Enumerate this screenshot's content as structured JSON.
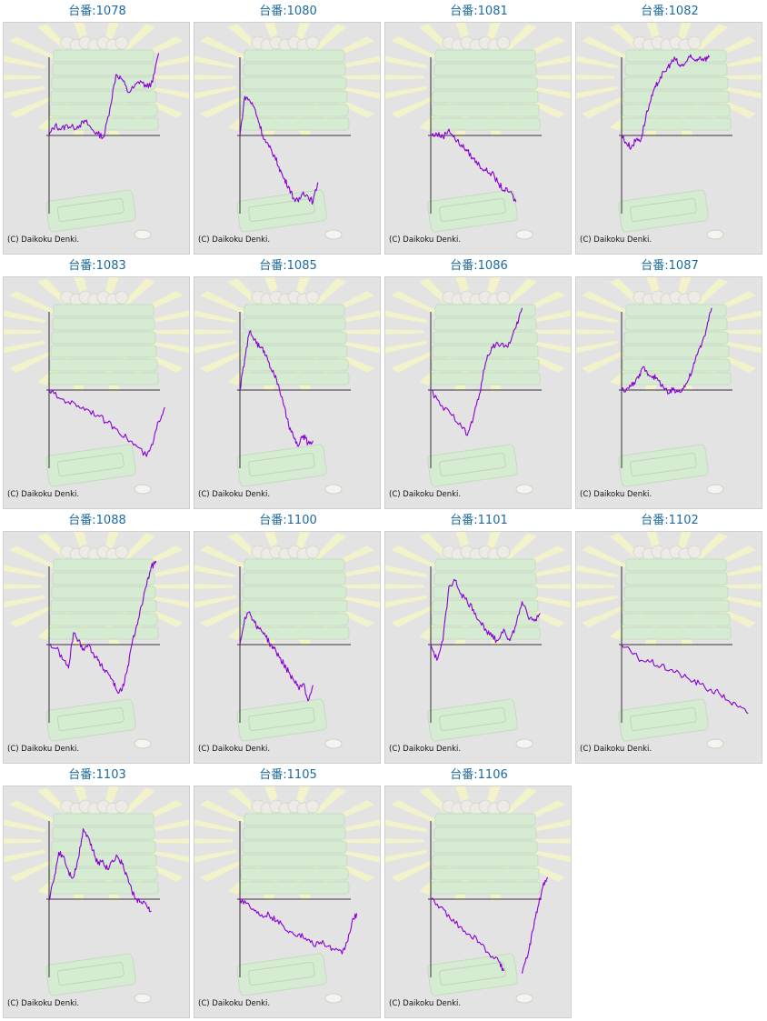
{
  "ui": {
    "credit": "(C) Daikoku Denki.",
    "colors": {
      "title": "#1c6aa0",
      "panel_bg": "#e3e3e3",
      "frame_border": "#cfcfcf",
      "axis": "#333333",
      "line": "#8a00d4",
      "ray": "#f3f3c8",
      "machine": "#d6ecd2"
    }
  },
  "chart_data": [
    {
      "type": "line",
      "title": "台番:1078",
      "points": [
        [
          0,
          0
        ],
        [
          5,
          0.13
        ],
        [
          10,
          0.08
        ],
        [
          15,
          0.13
        ],
        [
          20,
          0.1
        ],
        [
          25,
          0.13
        ],
        [
          30,
          0.18
        ],
        [
          35,
          0.08
        ],
        [
          40,
          0.02
        ],
        [
          45,
          -0.02
        ],
        [
          50,
          0.35
        ],
        [
          55,
          0.78
        ],
        [
          60,
          0.72
        ],
        [
          65,
          0.55
        ],
        [
          70,
          0.62
        ],
        [
          75,
          0.7
        ],
        [
          80,
          0.62
        ],
        [
          85,
          0.68
        ],
        [
          90,
          1.05
        ]
      ]
    },
    {
      "type": "line",
      "title": "台番:1080",
      "points": [
        [
          0,
          0
        ],
        [
          4,
          0.5
        ],
        [
          8,
          0.45
        ],
        [
          12,
          0.35
        ],
        [
          16,
          0.15
        ],
        [
          20,
          -0.05
        ],
        [
          24,
          -0.15
        ],
        [
          28,
          -0.25
        ],
        [
          32,
          -0.4
        ],
        [
          36,
          -0.55
        ],
        [
          40,
          -0.65
        ],
        [
          44,
          -0.8
        ],
        [
          48,
          -0.85
        ],
        [
          52,
          -0.72
        ],
        [
          56,
          -0.78
        ],
        [
          60,
          -0.85
        ],
        [
          64,
          -0.6
        ]
      ]
    },
    {
      "type": "line",
      "title": "台番:1081",
      "points": [
        [
          0,
          0
        ],
        [
          5,
          0.02
        ],
        [
          10,
          -0.02
        ],
        [
          15,
          0.08
        ],
        [
          20,
          -0.05
        ],
        [
          25,
          -0.12
        ],
        [
          30,
          -0.2
        ],
        [
          35,
          -0.3
        ],
        [
          40,
          -0.38
        ],
        [
          45,
          -0.45
        ],
        [
          50,
          -0.48
        ],
        [
          55,
          -0.6
        ],
        [
          60,
          -0.7
        ],
        [
          65,
          -0.72
        ],
        [
          70,
          -0.85
        ]
      ]
    },
    {
      "type": "line",
      "title": "台番:1082",
      "points": [
        [
          0,
          0
        ],
        [
          4,
          -0.1
        ],
        [
          8,
          -0.15
        ],
        [
          12,
          -0.05
        ],
        [
          16,
          -0.05
        ],
        [
          20,
          0.25
        ],
        [
          24,
          0.45
        ],
        [
          28,
          0.62
        ],
        [
          32,
          0.75
        ],
        [
          36,
          0.82
        ],
        [
          40,
          0.92
        ],
        [
          44,
          0.98
        ],
        [
          48,
          0.88
        ],
        [
          52,
          0.92
        ],
        [
          56,
          1.0
        ],
        [
          60,
          0.96
        ],
        [
          64,
          1.0
        ],
        [
          68,
          0.98
        ],
        [
          72,
          1.0
        ]
      ]
    },
    {
      "type": "line",
      "title": "台番:1083",
      "points": [
        [
          0,
          0
        ],
        [
          8,
          -0.1
        ],
        [
          16,
          -0.15
        ],
        [
          24,
          -0.2
        ],
        [
          32,
          -0.25
        ],
        [
          40,
          -0.32
        ],
        [
          48,
          -0.42
        ],
        [
          56,
          -0.5
        ],
        [
          64,
          -0.62
        ],
        [
          72,
          -0.72
        ],
        [
          80,
          -0.85
        ],
        [
          85,
          -0.7
        ],
        [
          90,
          -0.4
        ],
        [
          95,
          -0.22
        ]
      ]
    },
    {
      "type": "line",
      "title": "台番:1085",
      "points": [
        [
          0,
          0
        ],
        [
          4,
          0.4
        ],
        [
          8,
          0.75
        ],
        [
          12,
          0.65
        ],
        [
          16,
          0.55
        ],
        [
          20,
          0.5
        ],
        [
          24,
          0.35
        ],
        [
          28,
          0.2
        ],
        [
          32,
          0.05
        ],
        [
          36,
          -0.2
        ],
        [
          40,
          -0.45
        ],
        [
          44,
          -0.6
        ],
        [
          48,
          -0.72
        ],
        [
          52,
          -0.58
        ],
        [
          56,
          -0.68
        ],
        [
          60,
          -0.65
        ]
      ]
    },
    {
      "type": "line",
      "title": "台番:1086",
      "points": [
        [
          0,
          0
        ],
        [
          8,
          -0.2
        ],
        [
          16,
          -0.3
        ],
        [
          24,
          -0.42
        ],
        [
          30,
          -0.58
        ],
        [
          35,
          -0.35
        ],
        [
          40,
          -0.05
        ],
        [
          45,
          0.35
        ],
        [
          50,
          0.55
        ],
        [
          55,
          0.6
        ],
        [
          60,
          0.55
        ],
        [
          65,
          0.6
        ],
        [
          70,
          0.8
        ],
        [
          75,
          1.05
        ]
      ]
    },
    {
      "type": "line",
      "title": "台番:1087",
      "points": [
        [
          0,
          0
        ],
        [
          6,
          0.02
        ],
        [
          10,
          0.1
        ],
        [
          14,
          0.15
        ],
        [
          18,
          0.3
        ],
        [
          22,
          0.2
        ],
        [
          26,
          0.18
        ],
        [
          30,
          0.12
        ],
        [
          34,
          0.05
        ],
        [
          38,
          -0.05
        ],
        [
          42,
          0.0
        ],
        [
          46,
          -0.02
        ],
        [
          50,
          0.02
        ],
        [
          54,
          0.1
        ],
        [
          58,
          0.25
        ],
        [
          62,
          0.45
        ],
        [
          66,
          0.6
        ],
        [
          70,
          0.8
        ],
        [
          74,
          1.05
        ]
      ]
    },
    {
      "type": "line",
      "title": "台番:1088",
      "points": [
        [
          0,
          0
        ],
        [
          6,
          -0.05
        ],
        [
          12,
          -0.2
        ],
        [
          16,
          -0.3
        ],
        [
          20,
          0.15
        ],
        [
          24,
          0.05
        ],
        [
          28,
          -0.05
        ],
        [
          32,
          0.0
        ],
        [
          36,
          -0.1
        ],
        [
          40,
          -0.2
        ],
        [
          44,
          -0.3
        ],
        [
          48,
          -0.35
        ],
        [
          52,
          -0.45
        ],
        [
          56,
          -0.6
        ],
        [
          60,
          -0.58
        ],
        [
          64,
          -0.35
        ],
        [
          68,
          0.0
        ],
        [
          72,
          0.25
        ],
        [
          76,
          0.5
        ],
        [
          80,
          0.75
        ],
        [
          84,
          1.0
        ],
        [
          88,
          1.05
        ]
      ]
    },
    {
      "type": "line",
      "title": "台番:1100",
      "points": [
        [
          0,
          0
        ],
        [
          4,
          0.35
        ],
        [
          8,
          0.42
        ],
        [
          12,
          0.28
        ],
        [
          16,
          0.2
        ],
        [
          20,
          0.15
        ],
        [
          24,
          0.02
        ],
        [
          28,
          -0.05
        ],
        [
          32,
          -0.15
        ],
        [
          36,
          -0.25
        ],
        [
          40,
          -0.35
        ],
        [
          44,
          -0.45
        ],
        [
          48,
          -0.55
        ],
        [
          52,
          -0.5
        ],
        [
          56,
          -0.72
        ],
        [
          60,
          -0.52
        ]
      ]
    },
    {
      "type": "line",
      "title": "台番:1101",
      "points": [
        [
          0,
          0
        ],
        [
          5,
          -0.2
        ],
        [
          10,
          0.05
        ],
        [
          15,
          0.75
        ],
        [
          20,
          0.82
        ],
        [
          25,
          0.65
        ],
        [
          30,
          0.55
        ],
        [
          35,
          0.45
        ],
        [
          40,
          0.3
        ],
        [
          45,
          0.2
        ],
        [
          50,
          0.1
        ],
        [
          55,
          0.05
        ],
        [
          60,
          0.2
        ],
        [
          65,
          0.05
        ],
        [
          70,
          0.25
        ],
        [
          75,
          0.55
        ],
        [
          80,
          0.35
        ],
        [
          85,
          0.3
        ],
        [
          90,
          0.4
        ]
      ]
    },
    {
      "type": "line",
      "title": "台番:1102",
      "points": [
        [
          0,
          0
        ],
        [
          8,
          -0.1
        ],
        [
          16,
          -0.2
        ],
        [
          24,
          -0.22
        ],
        [
          32,
          -0.28
        ],
        [
          40,
          -0.32
        ],
        [
          48,
          -0.38
        ],
        [
          56,
          -0.45
        ],
        [
          64,
          -0.5
        ],
        [
          72,
          -0.58
        ],
        [
          80,
          -0.62
        ],
        [
          88,
          -0.72
        ],
        [
          96,
          -0.8
        ],
        [
          104,
          -0.88
        ]
      ]
    },
    {
      "type": "line",
      "title": "台番:1103",
      "points": [
        [
          0,
          0
        ],
        [
          4,
          0.25
        ],
        [
          8,
          0.6
        ],
        [
          12,
          0.55
        ],
        [
          16,
          0.35
        ],
        [
          20,
          0.28
        ],
        [
          24,
          0.52
        ],
        [
          28,
          0.9
        ],
        [
          32,
          0.8
        ],
        [
          36,
          0.62
        ],
        [
          40,
          0.45
        ],
        [
          44,
          0.5
        ],
        [
          48,
          0.38
        ],
        [
          52,
          0.5
        ],
        [
          56,
          0.55
        ],
        [
          60,
          0.45
        ],
        [
          64,
          0.3
        ],
        [
          68,
          0.1
        ],
        [
          72,
          0.0
        ],
        [
          76,
          -0.05
        ],
        [
          80,
          -0.08
        ],
        [
          84,
          -0.15
        ]
      ]
    },
    {
      "type": "line",
      "title": "台番:1105",
      "points": [
        [
          0,
          0
        ],
        [
          6,
          -0.05
        ],
        [
          12,
          -0.15
        ],
        [
          18,
          -0.2
        ],
        [
          24,
          -0.2
        ],
        [
          30,
          -0.28
        ],
        [
          36,
          -0.35
        ],
        [
          42,
          -0.42
        ],
        [
          48,
          -0.45
        ],
        [
          54,
          -0.5
        ],
        [
          60,
          -0.58
        ],
        [
          66,
          -0.55
        ],
        [
          72,
          -0.6
        ],
        [
          78,
          -0.65
        ],
        [
          84,
          -0.7
        ],
        [
          88,
          -0.55
        ],
        [
          92,
          -0.3
        ],
        [
          96,
          -0.18
        ]
      ]
    },
    {
      "type": "line",
      "title": "台番:1106",
      "points": [
        [
          0,
          0
        ],
        [
          8,
          -0.1
        ],
        [
          16,
          -0.25
        ],
        [
          24,
          -0.35
        ],
        [
          32,
          -0.45
        ],
        [
          40,
          -0.55
        ],
        [
          48,
          -0.7
        ],
        [
          56,
          -0.8
        ],
        [
          60,
          -0.92
        ],
        [
          66,
          null
        ],
        [
          75,
          -0.95
        ],
        [
          80,
          -0.7
        ],
        [
          84,
          -0.4
        ],
        [
          88,
          -0.1
        ],
        [
          92,
          0.15
        ],
        [
          96,
          0.28
        ]
      ]
    }
  ]
}
